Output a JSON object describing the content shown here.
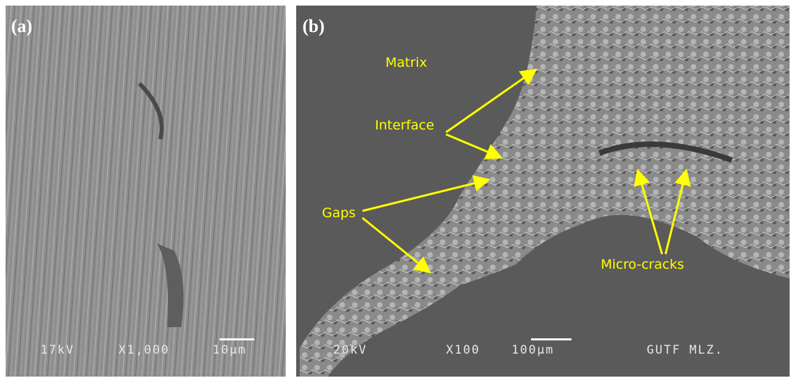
{
  "panels": [
    {
      "label": "(a)",
      "footer": [
        "17kV",
        "X1,000",
        "10μm"
      ]
    },
    {
      "label": "(b)",
      "annotations": [
        "Matrix",
        "Interface",
        "Gaps",
        "Micro-cracks"
      ],
      "footer": [
        "20kV",
        "X100",
        "100μm",
        "GUTF MLZ."
      ]
    }
  ]
}
